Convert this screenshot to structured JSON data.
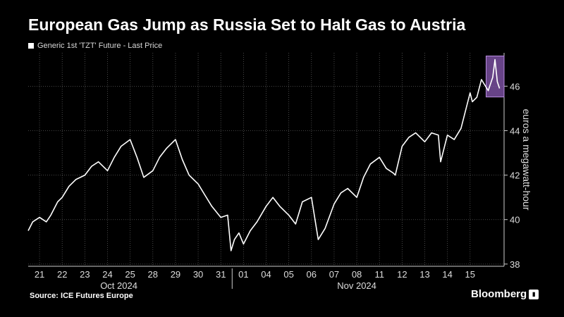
{
  "title": "European Gas Jump as Russia Set to Halt Gas to Austria",
  "legend": {
    "label": "Generic 1st 'TZT' Future - Last Price",
    "color": "#ffffff"
  },
  "source": "Source: ICE Futures Europe",
  "brand": {
    "name": "Bloomberg",
    "badge_icon": "chart-badge-icon"
  },
  "colors": {
    "background": "#000000",
    "line": "#ffffff",
    "highlight": "#8a5ab4",
    "grid": "#5a5a5a"
  },
  "chart_data": {
    "type": "line",
    "title": "European Gas Jump as Russia Set to Halt Gas to Austria",
    "ylabel": "euros a megawatt-hour",
    "ylim": [
      37.9,
      47.5
    ],
    "y_ticks": [
      38,
      40,
      42,
      44,
      46
    ],
    "x_tick_labels": [
      "21",
      "22",
      "23",
      "24",
      "25",
      "28",
      "29",
      "30",
      "31",
      "01",
      "04",
      "05",
      "06",
      "07",
      "08",
      "11",
      "12",
      "13",
      "14",
      "15"
    ],
    "month_labels": [
      {
        "label": "Oct 2024",
        "at": 3.5
      },
      {
        "label": "Nov 2024",
        "at": 14
      }
    ],
    "month_divider_at": 8.5,
    "grid": true,
    "legend_position": "top-left",
    "series": [
      {
        "name": "Generic 1st 'TZT' Future - Last Price",
        "x": [
          -0.5,
          -0.3,
          0,
          0.3,
          0.5,
          0.8,
          1,
          1.3,
          1.6,
          2,
          2.3,
          2.6,
          3,
          3.3,
          3.6,
          4,
          4.3,
          4.6,
          5,
          5.3,
          5.6,
          6,
          6.3,
          6.6,
          7,
          7.3,
          7.6,
          8,
          8.3,
          8.45,
          8.6,
          8.8,
          9,
          9.3,
          9.6,
          10,
          10.3,
          10.6,
          11,
          11.3,
          11.6,
          12,
          12.3,
          12.6,
          13,
          13.3,
          13.6,
          14,
          14.3,
          14.6,
          15,
          15.3,
          15.6,
          15.7,
          16,
          16.3,
          16.6,
          17,
          17.3,
          17.6,
          17.7,
          18,
          18.3,
          18.6,
          19,
          19.1,
          19.3,
          19.5,
          19.8,
          19.9,
          20,
          20.1,
          20.2,
          20.3
        ],
        "y": [
          39.5,
          39.9,
          40.1,
          39.9,
          40.2,
          40.8,
          41.0,
          41.5,
          41.8,
          42.0,
          42.4,
          42.6,
          42.2,
          42.8,
          43.3,
          43.6,
          42.8,
          41.9,
          42.2,
          42.8,
          43.2,
          43.6,
          42.7,
          42.0,
          41.6,
          41.1,
          40.6,
          40.1,
          40.2,
          38.6,
          39.1,
          39.4,
          38.9,
          39.5,
          39.9,
          40.6,
          41.0,
          40.6,
          40.2,
          39.8,
          40.8,
          41.0,
          39.1,
          39.6,
          40.7,
          41.2,
          41.4,
          41.0,
          41.9,
          42.5,
          42.8,
          42.3,
          42.1,
          42.0,
          43.3,
          43.7,
          43.9,
          43.5,
          43.9,
          43.8,
          42.6,
          43.8,
          43.6,
          44.1,
          45.7,
          45.3,
          45.5,
          46.3,
          45.8,
          46.1,
          46.4,
          47.2,
          46.2,
          45.9
        ]
      }
    ],
    "highlight_x_range": [
      19.8,
      20.5
    ]
  }
}
